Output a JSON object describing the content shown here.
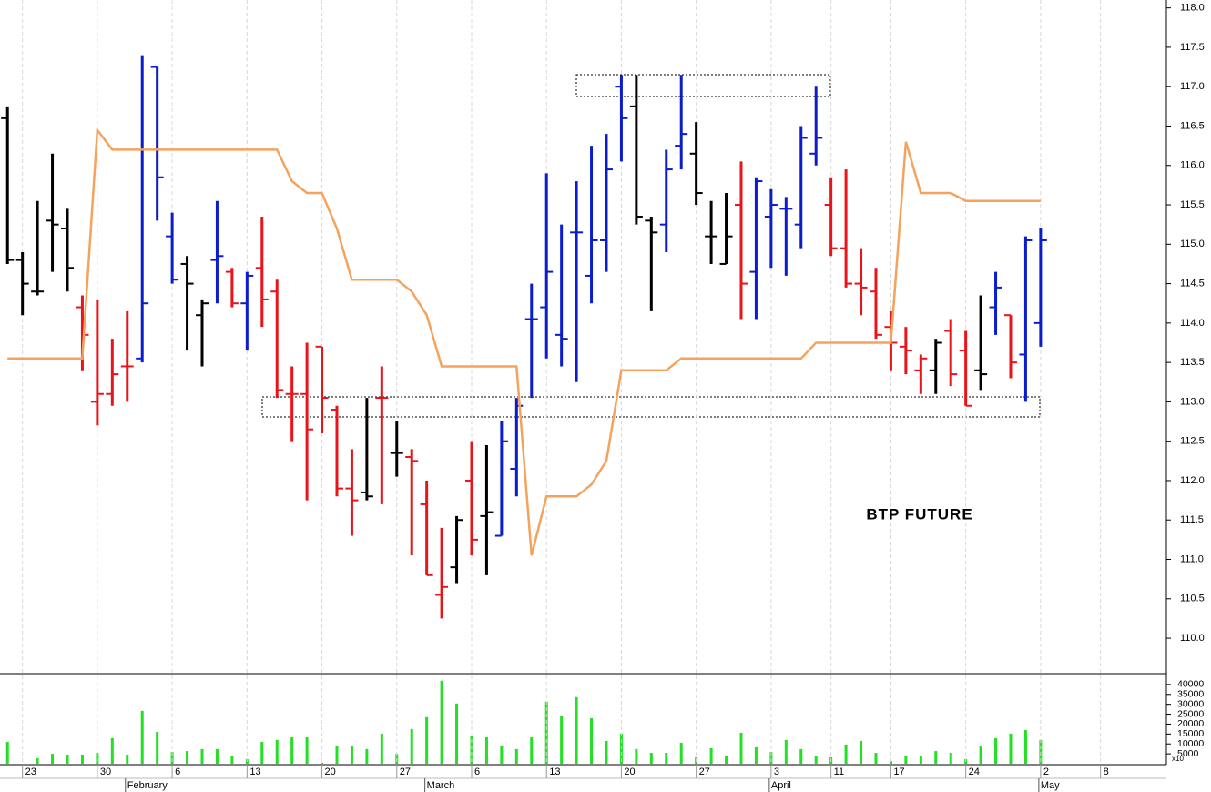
{
  "chart_data": [
    {
      "type": "ohlc",
      "annotation": "BTP FUTURE",
      "open": [
        116.6,
        114.8,
        114.4,
        115.3,
        115.2,
        114.2,
        113.0,
        113.1,
        113.45,
        113.55,
        117.25,
        115.1,
        114.75,
        114.1,
        114.8,
        114.65,
        114.25,
        114.7,
        114.4,
        113.1,
        113.1,
        113.7,
        112.9,
        111.9,
        111.85,
        113.05,
        112.35,
        112.3,
        111.7,
        110.55,
        110.9,
        112.0,
        111.55,
        111.3,
        112.15,
        114.05,
        114.2,
        113.85,
        115.15,
        114.6,
        115.05,
        117.0,
        116.75,
        115.3,
        115.25,
        116.25,
        116.15,
        115.1,
        114.75,
        115.5,
        114.65,
        115.35,
        115.45,
        115.25,
        116.15,
        115.5,
        114.95,
        114.5,
        114.4,
        113.95,
        113.7,
        113.4,
        113.4,
        113.9,
        113.65,
        113.4,
        114.2,
        114.1,
        113.6,
        114.0
      ],
      "high": [
        116.75,
        114.9,
        115.55,
        116.15,
        115.45,
        114.35,
        114.3,
        113.8,
        114.15,
        117.4,
        117.25,
        115.4,
        114.85,
        114.3,
        115.55,
        114.7,
        114.65,
        115.35,
        114.55,
        113.45,
        113.75,
        113.7,
        112.95,
        112.4,
        113.05,
        113.45,
        112.75,
        112.4,
        112.0,
        111.4,
        111.55,
        112.5,
        112.45,
        112.75,
        113.05,
        114.5,
        115.9,
        115.25,
        115.8,
        116.25,
        116.4,
        117.15,
        117.15,
        115.35,
        116.2,
        117.15,
        116.55,
        115.55,
        115.65,
        116.05,
        115.85,
        115.7,
        115.6,
        116.5,
        117.0,
        115.85,
        115.95,
        114.95,
        114.7,
        114.15,
        113.95,
        113.6,
        113.8,
        114.05,
        113.9,
        114.35,
        114.65,
        114.1,
        115.1,
        115.2
      ],
      "low": [
        114.75,
        114.1,
        114.35,
        114.65,
        114.4,
        113.4,
        112.7,
        112.95,
        113.0,
        113.5,
        115.3,
        114.5,
        113.65,
        113.45,
        114.25,
        114.2,
        113.65,
        113.95,
        113.05,
        112.5,
        111.75,
        112.6,
        111.8,
        111.3,
        111.75,
        111.7,
        112.05,
        111.05,
        110.8,
        110.25,
        110.7,
        111.05,
        110.8,
        111.3,
        111.8,
        113.05,
        113.55,
        113.45,
        113.25,
        114.25,
        114.65,
        116.05,
        115.25,
        114.15,
        114.9,
        115.95,
        115.5,
        114.75,
        114.75,
        114.05,
        114.05,
        114.7,
        114.6,
        114.95,
        116.0,
        114.85,
        114.45,
        114.1,
        113.8,
        113.4,
        113.35,
        113.1,
        113.1,
        113.2,
        112.95,
        113.15,
        113.85,
        113.3,
        113.0,
        113.7
      ],
      "close": [
        114.8,
        114.5,
        114.4,
        115.25,
        114.7,
        113.85,
        113.1,
        113.35,
        113.45,
        114.25,
        115.85,
        114.55,
        114.5,
        114.25,
        114.85,
        114.25,
        114.6,
        114.3,
        113.15,
        113.1,
        112.65,
        113.05,
        111.9,
        111.75,
        111.8,
        113.05,
        112.35,
        112.25,
        110.8,
        110.65,
        111.5,
        111.25,
        111.6,
        112.5,
        112.95,
        114.05,
        114.65,
        113.8,
        115.15,
        115.05,
        115.95,
        116.6,
        115.35,
        115.15,
        115.95,
        116.4,
        115.65,
        115.1,
        115.1,
        114.5,
        115.8,
        115.5,
        115.45,
        116.35,
        116.35,
        114.95,
        114.5,
        114.45,
        113.85,
        113.75,
        113.65,
        113.55,
        113.75,
        113.35,
        112.95,
        113.35,
        114.45,
        113.5,
        115.05,
        115.05
      ],
      "bar_colors": [
        "k",
        "k",
        "k",
        "k",
        "k",
        "r",
        "r",
        "r",
        "r",
        "b",
        "b",
        "b",
        "k",
        "k",
        "b",
        "r",
        "b",
        "r",
        "r",
        "r",
        "r",
        "r",
        "r",
        "r",
        "k",
        "r",
        "k",
        "r",
        "r",
        "r",
        "k",
        "r",
        "k",
        "b",
        "b",
        "b",
        "b",
        "b",
        "b",
        "b",
        "b",
        "b",
        "k",
        "k",
        "b",
        "b",
        "k",
        "k",
        "k",
        "r",
        "b",
        "b",
        "b",
        "b",
        "b",
        "r",
        "r",
        "r",
        "r",
        "r",
        "r",
        "r",
        "k",
        "r",
        "r",
        "k",
        "b",
        "r",
        "b",
        "b"
      ],
      "palette": {
        "k": "#000000",
        "r": "#e8141a",
        "b": "#0a1ccc"
      },
      "line": {
        "color": "#f5a35c",
        "values": [
          113.55,
          113.55,
          113.55,
          113.55,
          113.55,
          113.55,
          116.45,
          116.2,
          116.2,
          116.2,
          116.2,
          116.2,
          116.2,
          116.2,
          116.2,
          116.2,
          116.2,
          116.2,
          116.2,
          115.8,
          115.65,
          115.65,
          115.2,
          114.55,
          114.55,
          114.55,
          114.55,
          114.4,
          114.1,
          113.45,
          113.45,
          113.45,
          113.45,
          113.45,
          113.45,
          111.05,
          111.8,
          111.8,
          111.8,
          111.95,
          112.25,
          113.4,
          113.4,
          113.4,
          113.4,
          113.55,
          113.55,
          113.55,
          113.55,
          113.55,
          113.55,
          113.55,
          113.55,
          113.55,
          113.75,
          113.75,
          113.75,
          113.75,
          113.75,
          113.75,
          116.3,
          115.65,
          115.65,
          115.65,
          115.55,
          115.55,
          115.55,
          115.55,
          115.55,
          115.55
        ]
      },
      "xlim": [
        -0.5,
        77.4
      ],
      "ylim": [
        109.55,
        118.1
      ],
      "yticks": [
        {
          "value": 110,
          "label": "110.0"
        },
        {
          "value": 110.5,
          "label": "110.5"
        },
        {
          "value": 111,
          "label": "111.0"
        },
        {
          "value": 111.5,
          "label": "111.5"
        },
        {
          "value": 112,
          "label": "112.0"
        },
        {
          "value": 112.5,
          "label": "112.5"
        },
        {
          "value": 113,
          "label": "113.0"
        },
        {
          "value": 113.5,
          "label": "113.5"
        },
        {
          "value": 114,
          "label": "114.0"
        },
        {
          "value": 114.5,
          "label": "114.5"
        },
        {
          "value": 115,
          "label": "115.0"
        },
        {
          "value": 115.5,
          "label": "115.5"
        },
        {
          "value": 116,
          "label": "116.0"
        },
        {
          "value": 116.5,
          "label": "116.5"
        },
        {
          "value": 117,
          "label": "117.0"
        },
        {
          "value": 117.5,
          "label": "117.5"
        },
        {
          "value": 118,
          "label": "118.0"
        }
      ],
      "grid": true
    },
    {
      "type": "bar",
      "color": "#22e022",
      "unit_label": "x10",
      "values": [
        11000,
        null,
        2800,
        5000,
        4600,
        4600,
        5500,
        12900,
        4600,
        26700,
        16100,
        6000,
        6400,
        7400,
        7400,
        3700,
        2300,
        11000,
        12000,
        13300,
        13300,
        500,
        9200,
        9200,
        7400,
        15200,
        5000,
        17500,
        23500,
        41900,
        30400,
        13800,
        13300,
        9200,
        7400,
        13300,
        31300,
        23900,
        33600,
        23000,
        11500,
        15200,
        7400,
        5500,
        5500,
        10600,
        3200,
        7800,
        4100,
        15600,
        8300,
        6000,
        12000,
        7400,
        3700,
        3200,
        9700,
        11500,
        5500,
        1400,
        4100,
        3700,
        6400,
        5500,
        2300,
        8700,
        12900,
        15200,
        17000,
        12000
      ],
      "xlim": [
        -0.5,
        77.4
      ],
      "ylim": [
        0,
        45000
      ],
      "yticks": [
        5000,
        10000,
        15000,
        20000,
        25000,
        30000,
        35000,
        40000
      ],
      "xticks": [
        {
          "value": 1,
          "label": "23"
        },
        {
          "value": 6,
          "label": "30"
        },
        {
          "value": 11,
          "label": "6"
        },
        {
          "value": 16,
          "label": "13"
        },
        {
          "value": 21,
          "label": "20"
        },
        {
          "value": 26,
          "label": "27"
        },
        {
          "value": 31,
          "label": "6"
        },
        {
          "value": 36,
          "label": "13"
        },
        {
          "value": 41,
          "label": "20"
        },
        {
          "value": 46,
          "label": "27"
        },
        {
          "value": 51,
          "label": "3"
        },
        {
          "value": 55,
          "label": "11"
        },
        {
          "value": 59,
          "label": "17"
        },
        {
          "value": 64,
          "label": "24"
        },
        {
          "value": 69,
          "label": "2"
        },
        {
          "value": 73,
          "label": "8"
        }
      ],
      "month_ticks": [
        {
          "value": 8,
          "label": "February"
        },
        {
          "value": 28,
          "label": "March"
        },
        {
          "value": 51,
          "label": "April"
        },
        {
          "value": 69,
          "label": "May"
        }
      ]
    }
  ]
}
